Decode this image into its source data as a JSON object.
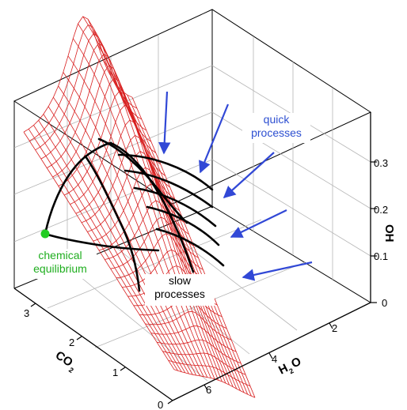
{
  "axes": {
    "oh_label": "OH",
    "h2o_label": {
      "main": "H",
      "sub": "2",
      "tail": "O"
    },
    "co2_label": {
      "main": "CO",
      "sub": "2"
    },
    "oh_ticks": [
      "0",
      "0.1",
      "0.2",
      "0.3"
    ],
    "h2o_ticks": [
      "2",
      "4",
      "6"
    ],
    "co2_ticks": [
      "0",
      "1",
      "2",
      "3"
    ]
  },
  "annotations": {
    "quick": {
      "line1": "quick",
      "line2": "processes",
      "color": "#2d4fd1"
    },
    "slow": {
      "line1": "slow",
      "line2": "processes",
      "color": "#000000"
    },
    "equilibrium": {
      "line1": "chemical",
      "line2": "equilibrium",
      "color": "#1fae1f"
    }
  },
  "colors": {
    "surface_mesh": "#d82020",
    "trajectories": "#000000",
    "arrows": "#3148d6",
    "equilibrium_point": "#22cc22"
  }
}
